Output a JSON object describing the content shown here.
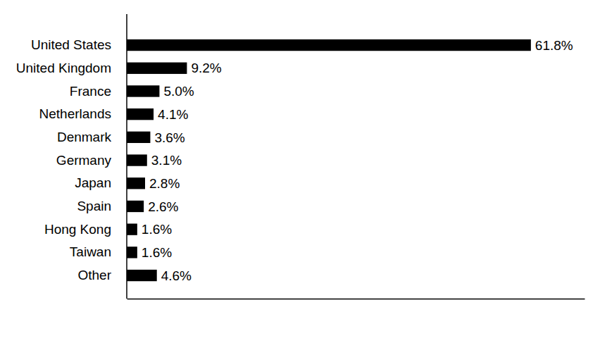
{
  "chart_data": {
    "type": "bar",
    "orientation": "horizontal",
    "categories": [
      "United States",
      "United Kingdom",
      "France",
      "Netherlands",
      "Denmark",
      "Germany",
      "Japan",
      "Spain",
      "Hong Kong",
      "Taiwan",
      "Other"
    ],
    "values": [
      61.8,
      9.2,
      5.0,
      4.1,
      3.6,
      3.1,
      2.8,
      2.6,
      1.6,
      1.6,
      4.6
    ],
    "value_labels": [
      "61.8%",
      "9.2%",
      "5.0%",
      "4.1%",
      "3.6%",
      "3.1%",
      "2.8%",
      "2.6%",
      "1.6%",
      "1.6%",
      "4.6%"
    ],
    "color": "#000000",
    "xlim": [
      0,
      70
    ],
    "xticks": [],
    "grid": false,
    "data_labels": true,
    "tick_labels": "y"
  }
}
